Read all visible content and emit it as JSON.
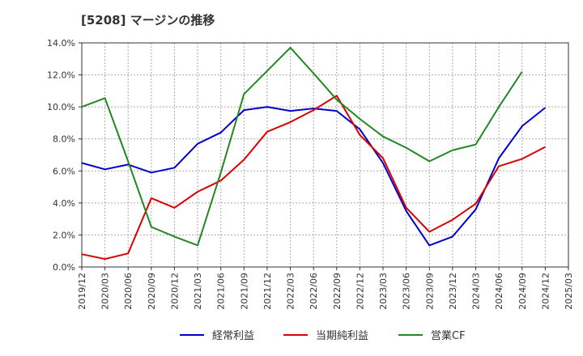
{
  "chart_data": {
    "type": "line",
    "title": "[5208]  マージンの推移",
    "xlabel": "",
    "ylabel": "",
    "x": [
      "2019/12",
      "2020/03",
      "2020/06",
      "2020/09",
      "2020/12",
      "2021/03",
      "2021/06",
      "2021/09",
      "2021/12",
      "2022/03",
      "2022/06",
      "2022/09",
      "2022/12",
      "2023/03",
      "2023/06",
      "2023/09",
      "2023/12",
      "2024/03",
      "2024/06",
      "2024/09",
      "2024/12",
      "2025/03"
    ],
    "ylim": [
      0,
      14
    ],
    "yticks": [
      "0.0%",
      "2.0%",
      "4.0%",
      "6.0%",
      "8.0%",
      "10.0%",
      "12.0%",
      "14.0%"
    ],
    "grid": true,
    "legend": "bottom",
    "series": [
      {
        "name": "経常利益",
        "color": "#0000cc",
        "values": [
          6.5,
          6.1,
          6.4,
          5.9,
          6.2,
          7.7,
          8.4,
          9.8,
          10.0,
          9.75,
          9.9,
          9.75,
          8.6,
          6.5,
          3.5,
          1.35,
          1.9,
          3.6,
          6.8,
          8.8,
          9.95,
          null
        ]
      },
      {
        "name": "当期純利益",
        "color": "#dd0000",
        "values": [
          0.8,
          0.5,
          0.85,
          4.3,
          3.7,
          4.7,
          5.4,
          6.7,
          8.45,
          9.05,
          9.8,
          10.7,
          8.25,
          6.8,
          3.7,
          2.2,
          2.95,
          3.95,
          6.3,
          6.75,
          7.5,
          null
        ]
      },
      {
        "name": "営業CF",
        "color": "#228822",
        "values": [
          10.0,
          10.55,
          6.6,
          2.5,
          1.9,
          1.35,
          5.9,
          10.8,
          12.25,
          13.7,
          12.1,
          10.45,
          9.25,
          8.15,
          7.45,
          6.6,
          7.3,
          7.65,
          10.0,
          12.2,
          null,
          null
        ]
      }
    ]
  }
}
